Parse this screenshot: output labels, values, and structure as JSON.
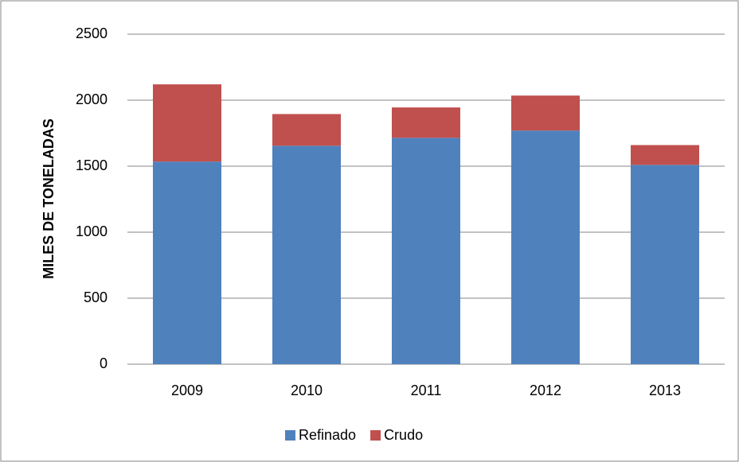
{
  "chart_data": {
    "type": "stacked_bar",
    "y_label": "MILES DE TONELADAS",
    "categories": [
      "2009",
      "2010",
      "2011",
      "2012",
      "2013"
    ],
    "series": [
      {
        "name": "Refinado",
        "color": "#4f81bd",
        "values": [
          1535,
          1655,
          1715,
          1770,
          1510
        ]
      },
      {
        "name": "Crudo",
        "color": "#c0504d",
        "values": [
          585,
          240,
          230,
          265,
          150
        ]
      }
    ],
    "ylim": [
      0,
      2500
    ],
    "yticks": [
      0,
      500,
      1000,
      1500,
      2000,
      2500
    ],
    "grid": true,
    "legend": "bottom"
  }
}
